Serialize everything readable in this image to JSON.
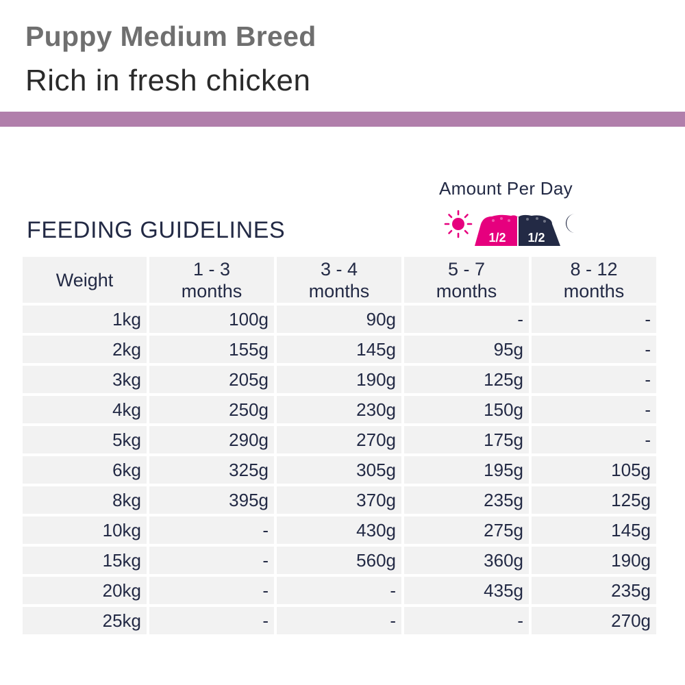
{
  "header": {
    "product_name": "Puppy Medium Breed",
    "product_sub": "Rich in fresh chicken",
    "band_color": "#b17fab"
  },
  "amount": {
    "label": "Amount Per Day",
    "day_icon": "sun-icon",
    "night_icon": "moon-icon",
    "day_portion": "1/2",
    "night_portion": "1/2",
    "day_color": "#e6007e",
    "night_color": "#232a45"
  },
  "section_title": "FEEDING GUIDELINES",
  "table": {
    "weight_header": "Weight",
    "age_headers": [
      {
        "line1": "1 - 3",
        "line2": "months"
      },
      {
        "line1": "3 - 4",
        "line2": "months"
      },
      {
        "line1": "5 - 7",
        "line2": "months"
      },
      {
        "line1": "8 - 12",
        "line2": "months"
      }
    ],
    "rows": [
      {
        "weight": "1kg",
        "values": [
          "100g",
          "90g",
          "-",
          "-"
        ]
      },
      {
        "weight": "2kg",
        "values": [
          "155g",
          "145g",
          "95g",
          "-"
        ]
      },
      {
        "weight": "3kg",
        "values": [
          "205g",
          "190g",
          "125g",
          "-"
        ]
      },
      {
        "weight": "4kg",
        "values": [
          "250g",
          "230g",
          "150g",
          "-"
        ]
      },
      {
        "weight": "5kg",
        "values": [
          "290g",
          "270g",
          "175g",
          "-"
        ]
      },
      {
        "weight": "6kg",
        "values": [
          "325g",
          "305g",
          "195g",
          "105g"
        ]
      },
      {
        "weight": "8kg",
        "values": [
          "395g",
          "370g",
          "235g",
          "125g"
        ]
      },
      {
        "weight": "10kg",
        "values": [
          "-",
          "430g",
          "275g",
          "145g"
        ]
      },
      {
        "weight": "15kg",
        "values": [
          "-",
          "560g",
          "360g",
          "190g"
        ]
      },
      {
        "weight": "20kg",
        "values": [
          "-",
          "-",
          "435g",
          "235g"
        ]
      },
      {
        "weight": "25kg",
        "values": [
          "-",
          "-",
          "-",
          "270g"
        ]
      }
    ]
  }
}
